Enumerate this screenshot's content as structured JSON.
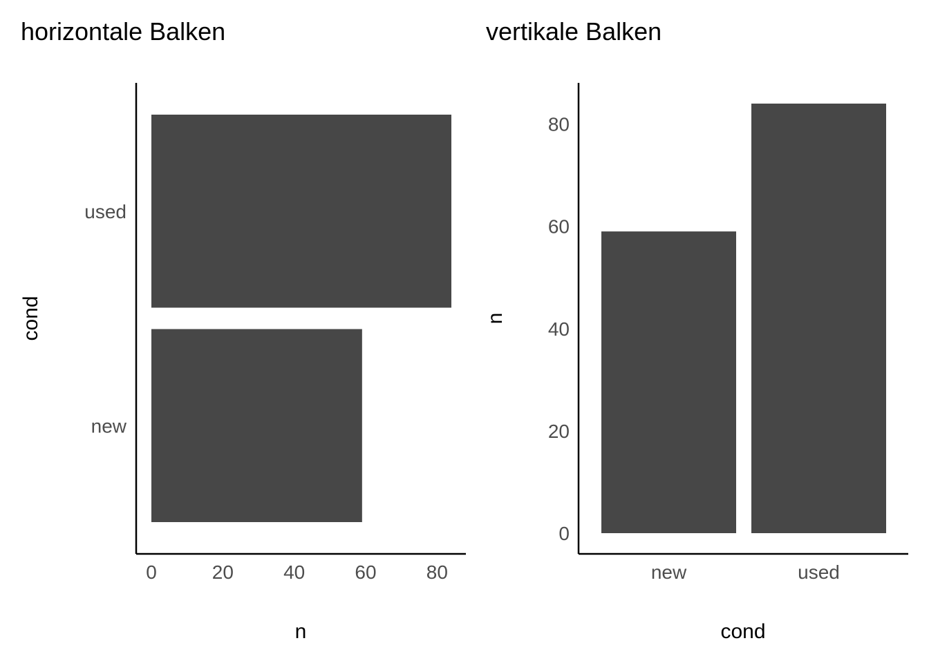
{
  "chart_data": [
    {
      "type": "bar",
      "orientation": "horizontal",
      "title": "horizontale Balken",
      "xlabel": "n",
      "ylabel": "cond",
      "categories": [
        "new",
        "used"
      ],
      "values": [
        59,
        84
      ],
      "xlim": [
        0,
        84
      ],
      "xticks": [
        0,
        20,
        40,
        60,
        80
      ],
      "xtick_labels": [
        "0",
        "20",
        "40",
        "60",
        "80"
      ],
      "grid": false,
      "bar_color": "#474747"
    },
    {
      "type": "bar",
      "orientation": "vertical",
      "title": "vertikale Balken",
      "xlabel": "cond",
      "ylabel": "n",
      "categories": [
        "new",
        "used"
      ],
      "values": [
        59,
        84
      ],
      "ylim": [
        0,
        84
      ],
      "yticks": [
        0,
        20,
        40,
        60,
        80
      ],
      "ytick_labels": [
        "0",
        "20",
        "40",
        "60",
        "80"
      ],
      "grid": false,
      "bar_color": "#474747"
    }
  ]
}
